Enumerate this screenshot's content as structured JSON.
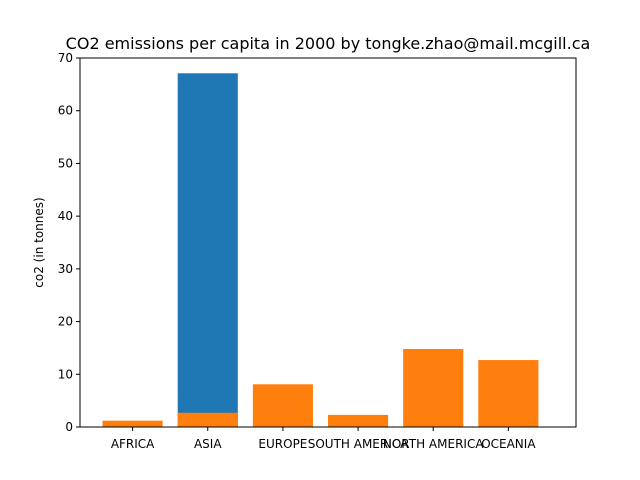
{
  "chart_data": {
    "type": "bar",
    "title": "CO2 emissions per capita in 2000 by tongke.zhao@mail.mcgill.ca",
    "xlabel": "",
    "ylabel": "co2 (in tonnes)",
    "categories": [
      "AFRICA",
      "ASIA",
      "EUROPE",
      "SOUTH AMERICA",
      "NORTH AMERICA",
      "OCEANIA"
    ],
    "ylim": [
      0,
      70
    ],
    "yticks": [
      0,
      10,
      20,
      30,
      40,
      50,
      60,
      70
    ],
    "grid": false,
    "legend": "none",
    "stacking": "overlaid",
    "series": [
      {
        "color": "#1f77b4",
        "values": [
          null,
          67.1,
          null,
          null,
          null,
          null
        ]
      },
      {
        "color": "#ff7f0e",
        "values": [
          1.2,
          2.7,
          8.1,
          2.3,
          14.8,
          12.7
        ]
      }
    ]
  }
}
